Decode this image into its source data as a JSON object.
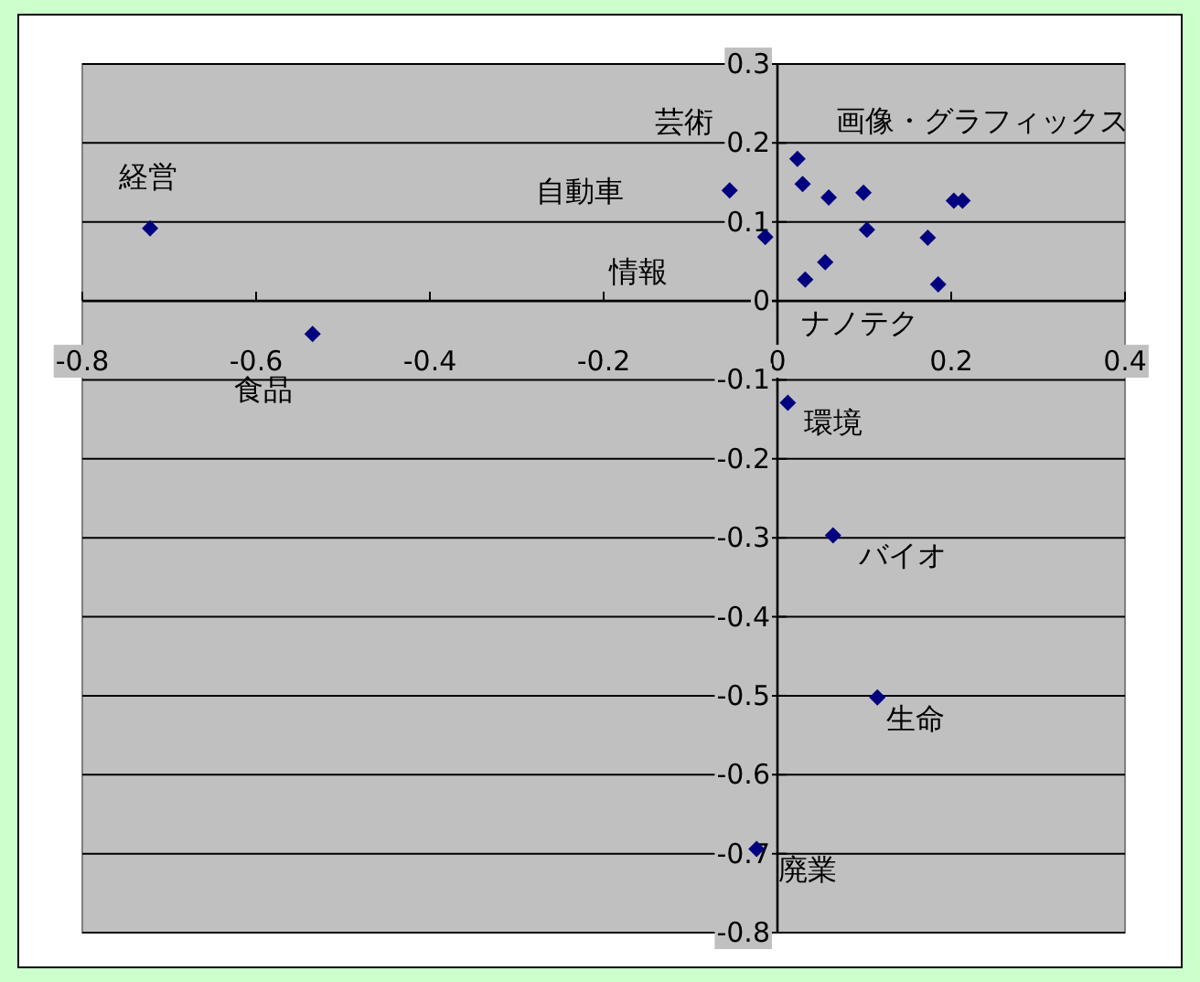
{
  "chart_data": {
    "type": "scatter",
    "xlim": [
      -0.8,
      0.4
    ],
    "ylim": [
      -0.8,
      0.3
    ],
    "xticks": [
      -0.8,
      -0.6,
      -0.4,
      -0.2,
      0,
      0.2,
      0.4
    ],
    "yticks": [
      -0.8,
      -0.7,
      -0.6,
      -0.5,
      -0.4,
      -0.3,
      -0.2,
      -0.1,
      0,
      0.1,
      0.2,
      0.3
    ],
    "grid": "y",
    "marker": "diamond",
    "series": [
      {
        "color": "#000080",
        "x": [
          -0.722,
          -0.535,
          0.023,
          -0.055,
          0.029,
          0.059,
          0.099,
          0.203,
          0.213,
          0.103,
          -0.014,
          0.173,
          0.055,
          0.032,
          0.185,
          0.012,
          0.064,
          0.115,
          -0.024
        ],
        "values": [
          0.092,
          -0.042,
          0.18,
          0.14,
          0.148,
          0.131,
          0.137,
          0.127,
          0.127,
          0.09,
          0.081,
          0.08,
          0.049,
          0.027,
          0.021,
          -0.129,
          -0.297,
          -0.502,
          -0.694
        ]
      }
    ],
    "annotations": [
      {
        "text": "経営",
        "x": -0.722,
        "y": 0.092
      },
      {
        "text": "食品",
        "x": -0.535,
        "y": -0.042
      },
      "自動車",
      {
        "text": "芸術",
        "x": 0.023,
        "y": 0.18
      },
      {
        "text": "画像・グラフィックス",
        "x": 0.213,
        "y": 0.127
      },
      "情報",
      {
        "text": "ナノテク",
        "x": 0.032,
        "y": 0.027
      },
      {
        "text": "環境",
        "x": 0.012,
        "y": -0.129
      },
      {
        "text": "バイオ",
        "x": 0.064,
        "y": -0.297
      },
      {
        "text": "生命",
        "x": 0.115,
        "y": -0.502
      },
      {
        "text": "廃業",
        "x": -0.024,
        "y": -0.694
      }
    ]
  }
}
